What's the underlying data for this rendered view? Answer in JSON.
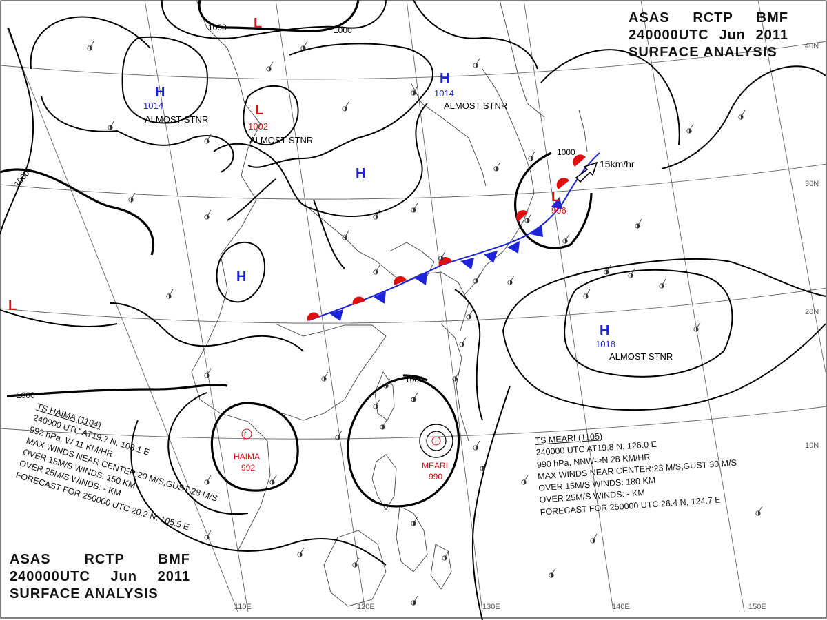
{
  "header": {
    "line1": [
      "ASAS",
      "RCTP",
      "BMF"
    ],
    "line2": [
      "240000UTC",
      "Jun",
      "2011"
    ],
    "line3": "SURFACE ANALYSIS"
  },
  "longitude_labels": [
    "110E",
    "120E",
    "130E",
    "140E",
    "150E"
  ],
  "latitude_labels": [
    "40N",
    "30N",
    "20N",
    "10N"
  ],
  "pressure_centers": [
    {
      "type": "H",
      "value": "1014",
      "note": "ALMOST STNR"
    },
    {
      "type": "L",
      "value": "1002",
      "note": "ALMOST STNR"
    },
    {
      "type": "H",
      "value": "1014",
      "note": "ALMOST STNR"
    },
    {
      "type": "H",
      "value": "",
      "note": ""
    },
    {
      "type": "H",
      "value": "",
      "note": ""
    },
    {
      "type": "L",
      "value": "996",
      "note": ""
    },
    {
      "type": "H",
      "value": "1018",
      "note": "ALMOST STNR"
    },
    {
      "type": "L",
      "value": "",
      "note": ""
    },
    {
      "type": "L",
      "value": "",
      "note": ""
    }
  ],
  "isobar_labels": [
    "1000",
    "1000",
    "1000",
    "1000",
    "1000"
  ],
  "motion": {
    "speed": "15km/hr"
  },
  "typhoons": [
    {
      "name": "HAIMA",
      "pressure": "992",
      "bulletin": [
        "TS HAIMA (1104)",
        "240000 UTC AT19.7 N, 108.1 E",
        "992 hPa, W 11 KM/HR",
        "MAX WINDS NEAR CENTER:20 M/S,GUST 28 M/S",
        "OVER 15M/S WINDS: 150 KM",
        "OVER 25M/S WINDS: - KM",
        "FORECAST FOR 250000 UTC 20.2 N, 105.5 E"
      ]
    },
    {
      "name": "MEARI",
      "pressure": "990",
      "bulletin": [
        "TS MEARI (1105)",
        "240000 UTC AT19.8 N, 126.0 E",
        "990 hPa, NNW->N 28 KM/HR",
        "MAX WINDS NEAR CENTER:23 M/S,GUST 30 M/S",
        "OVER 15M/S WINDS: 180 KM",
        "OVER 25M/S WINDS: - KM",
        "FORECAST FOR 250000 UTC 26.4 N, 124.7 E"
      ]
    }
  ],
  "colors": {
    "high": "#1c23d8",
    "low": "#e01010",
    "front_warm": "#e01010",
    "front_cold": "#1c23d8",
    "isobar": "#000000",
    "grid": "#555555",
    "coast": "#444444"
  }
}
